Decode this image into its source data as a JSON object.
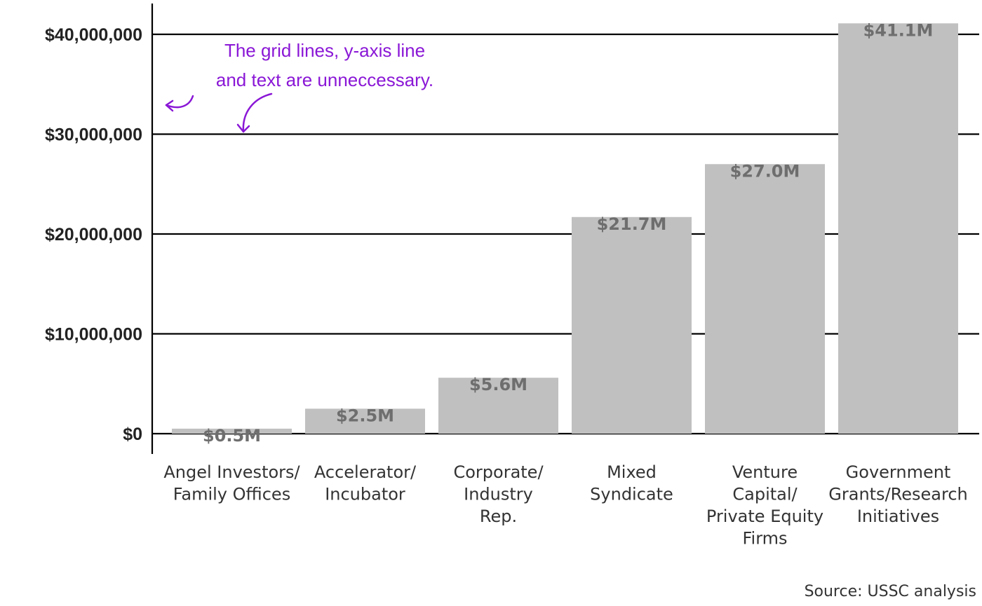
{
  "chart_data": {
    "type": "bar",
    "categories": [
      [
        "Angel Investors/",
        "Family Offices"
      ],
      [
        "Accelerator/",
        "Incubator"
      ],
      [
        "Corporate/",
        "Industry",
        "Rep."
      ],
      [
        "Mixed",
        "Syndicate"
      ],
      [
        "Venture",
        "Capital/",
        "Private Equity",
        "Firms"
      ],
      [
        "Government",
        "Grants/Research",
        "Initiatives"
      ]
    ],
    "values": [
      500000,
      2500000,
      5600000,
      21700000,
      27000000,
      41100000
    ],
    "data_labels": [
      "$0.5M",
      "$2.5M",
      "$5.6M",
      "$21.7M",
      "$27.0M",
      "$41.1M"
    ],
    "yticks": [
      0,
      10000000,
      20000000,
      30000000,
      40000000
    ],
    "ytick_labels": [
      "$0",
      "$10,000,000",
      "$20,000,000",
      "$30,000,000",
      "$40,000,000"
    ],
    "ylim": [
      0,
      43000000
    ],
    "grid": true,
    "bar_color": "#c0c0c0",
    "data_label_color": "#6e6e6e"
  },
  "annotation": {
    "lines": [
      "The grid lines, y-axis line",
      "and text are unneccessary."
    ],
    "color": "#8a17d6"
  },
  "source": "Source: USSC analysis"
}
